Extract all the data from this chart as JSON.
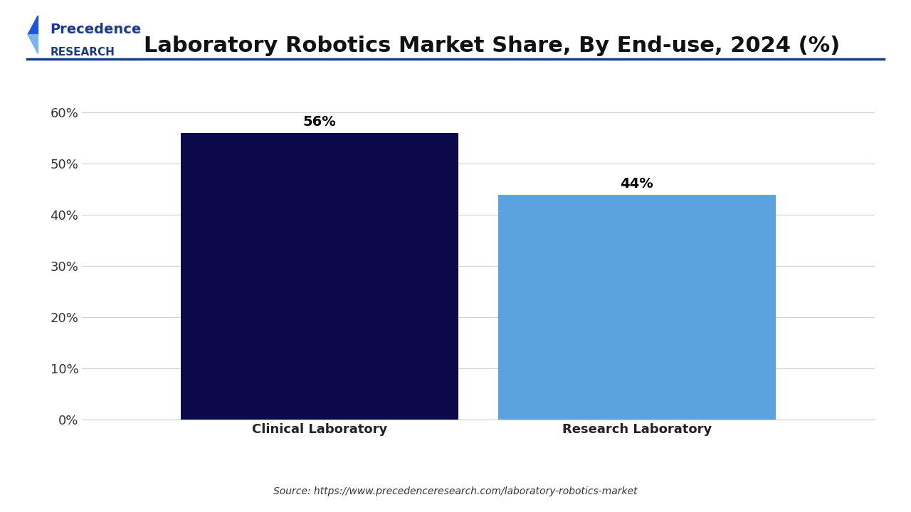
{
  "title": "Laboratory Robotics Market Share, By End-use, 2024 (%)",
  "categories": [
    "Clinical Laboratory",
    "Research Laboratory"
  ],
  "values": [
    56,
    44
  ],
  "bar_colors": [
    "#0a0a4a",
    "#5ba3e0"
  ],
  "value_labels": [
    "56%",
    "44%"
  ],
  "ylim": [
    0,
    65
  ],
  "yticks": [
    0,
    10,
    20,
    30,
    40,
    50,
    60
  ],
  "ytick_labels": [
    "0%",
    "10%",
    "20%",
    "30%",
    "40%",
    "50%",
    "60%"
  ],
  "background_color": "#ffffff",
  "grid_color": "#d0d0d0",
  "title_fontsize": 22,
  "label_fontsize": 13,
  "value_fontsize": 14,
  "tick_fontsize": 13,
  "source_text": "Source: https://www.precedenceresearch.com/laboratory-robotics-market",
  "logo_text_line1": "Precedence",
  "logo_text_line2": "RESEARCH",
  "bar_width": 0.35,
  "logo_color": "#1a3a8c",
  "logo_accent1": "#1a56db",
  "logo_accent2": "#7ab3f0"
}
